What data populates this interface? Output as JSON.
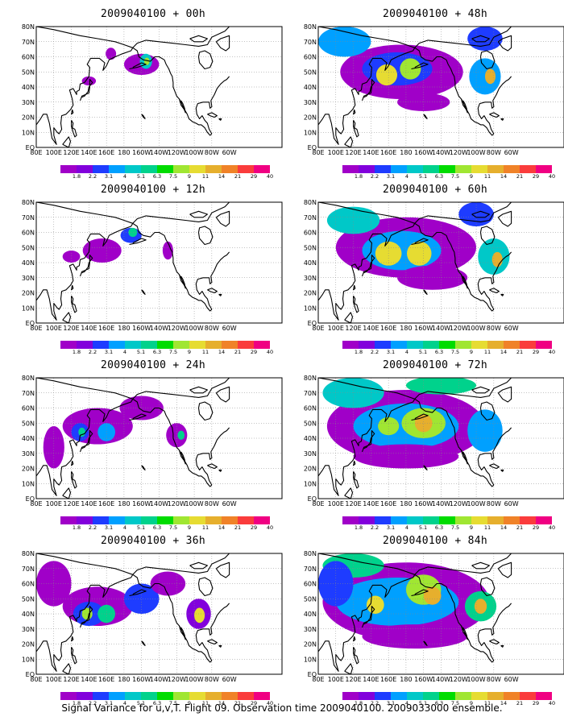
{
  "panels": [
    {
      "title": "2009040100 + 00h",
      "level": 0
    },
    {
      "title": "2009040100 + 48h",
      "level": 4
    },
    {
      "title": "2009040100 + 12h",
      "level": 1
    },
    {
      "title": "2009040100 + 60h",
      "level": 5
    },
    {
      "title": "2009040100 + 24h",
      "level": 2
    },
    {
      "title": "2009040100 + 72h",
      "level": 6
    },
    {
      "title": "2009040100 + 36h",
      "level": 3
    },
    {
      "title": "2009040100 + 84h",
      "level": 7
    }
  ],
  "lat_labels": [
    "80N",
    "70N",
    "60N",
    "50N",
    "40N",
    "30N",
    "20N",
    "10N",
    "EQ"
  ],
  "lon_labels": [
    "80E",
    "100E",
    "120E",
    "140E",
    "160E",
    "180",
    "160W",
    "140W",
    "120W",
    "100W",
    "80W",
    "60W"
  ],
  "colorbar": {
    "levels": [
      "1.8",
      "2.2",
      "3.1",
      "4",
      "5.1",
      "6.3",
      "7.5",
      "9",
      "11",
      "14",
      "21",
      "29",
      "40"
    ],
    "colors": [
      "#a000c8",
      "#8200dc",
      "#1e3cff",
      "#00a0ff",
      "#00c8c8",
      "#00d28c",
      "#00dc00",
      "#a0e632",
      "#e6dc32",
      "#e6af2d",
      "#f08228",
      "#fa3c3c",
      "#f00082"
    ]
  },
  "footer": "Signal Variance for u,v,T. Flight 09. Observation time 2009040100. 2009033000 ensemble."
}
